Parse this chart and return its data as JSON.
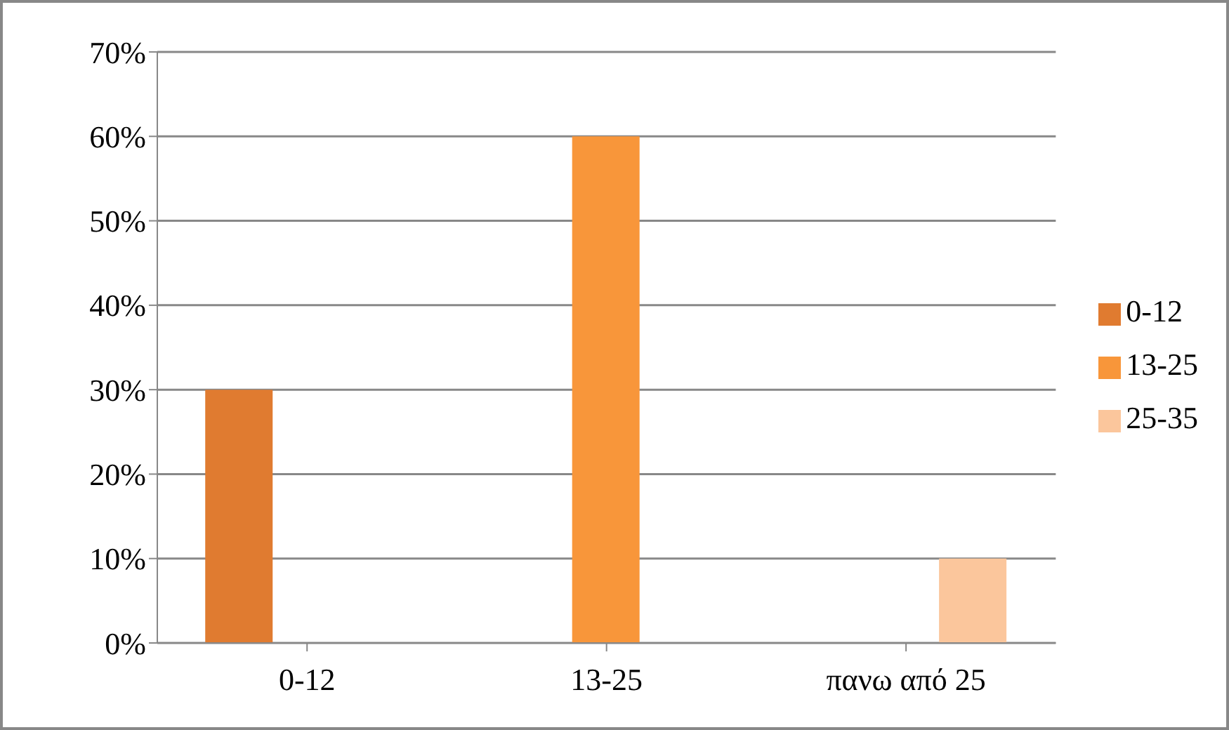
{
  "chart_data": {
    "type": "bar",
    "categories": [
      "0-12",
      "13-25",
      "πανω από 25"
    ],
    "series": [
      {
        "name": "0-12",
        "color": "#e07b30",
        "values": [
          30,
          null,
          null
        ]
      },
      {
        "name": "13-25",
        "color": "#f8963a",
        "values": [
          null,
          60,
          null
        ]
      },
      {
        "name": "25-35",
        "color": "#fbc69c",
        "values": [
          null,
          null,
          10
        ]
      }
    ],
    "ylim": [
      0,
      70
    ],
    "yticks": [
      {
        "value": 0,
        "label": "0%"
      },
      {
        "value": 10,
        "label": "10%"
      },
      {
        "value": 20,
        "label": "20%"
      },
      {
        "value": 30,
        "label": "30%"
      },
      {
        "value": 40,
        "label": "40%"
      },
      {
        "value": 50,
        "label": "50%"
      },
      {
        "value": 60,
        "label": "60%"
      },
      {
        "value": 70,
        "label": "70%"
      }
    ],
    "grid": "y",
    "legend": "right"
  }
}
